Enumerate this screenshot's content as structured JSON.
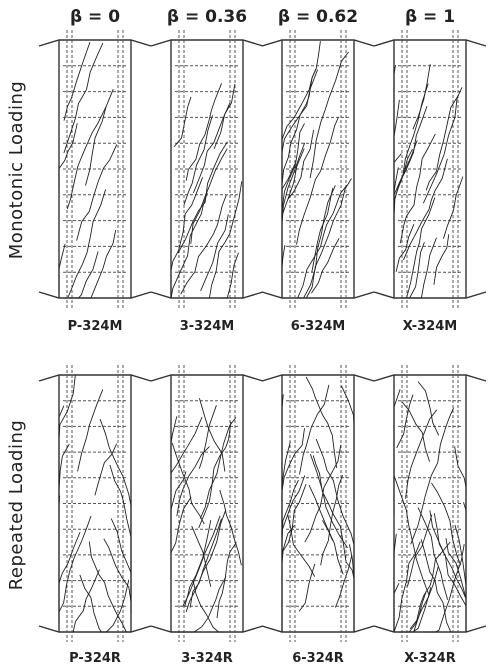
{
  "columns": [
    "β = 0",
    "β = 0.36",
    "β = 0.62",
    "β = 1"
  ],
  "rows": [
    {
      "label": "Monotonic Loading",
      "specimens": [
        "P-324M",
        "3-324M",
        "6-324M",
        "X-324M"
      ]
    },
    {
      "label": "Repeated Loading",
      "specimens": [
        "P-324R",
        "3-324R",
        "6-324R",
        "X-324R"
      ]
    }
  ]
}
